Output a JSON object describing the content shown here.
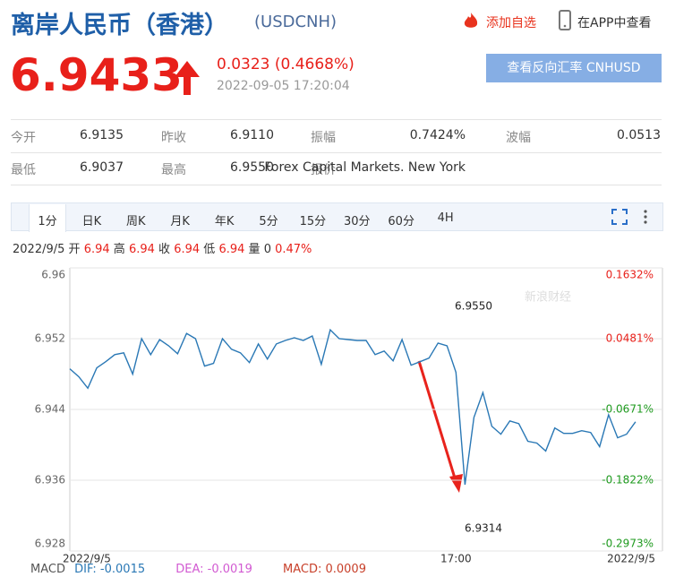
{
  "header": {
    "title": "离岸人民币（香港）",
    "code": "(USDCNH)",
    "add": "添加自选",
    "app": "在APP中查看"
  },
  "quote": {
    "price": "6.9433",
    "change": "0.0323 (0.4668%)",
    "time": "2022-09-05 17:20:04",
    "reverse": "查看反向汇率 CNHUSD"
  },
  "table": {
    "rows": [
      [
        "今开",
        "6.9135",
        "昨收",
        "6.9110",
        "振幅",
        "0.7424%",
        "波幅",
        "0.0513"
      ],
      [
        "最低",
        "6.9037",
        "最高",
        "6.9550",
        "报价",
        "Forex Capital Markets. New York"
      ]
    ]
  },
  "tabs": [
    "1分",
    "日K",
    "周K",
    "月K",
    "年K",
    "5分",
    "15分",
    "30分",
    "60分",
    "4H"
  ],
  "info": {
    "date": "2022/9/5",
    "items": [
      [
        "开",
        "6.94"
      ],
      [
        "高",
        "6.94"
      ],
      [
        "收",
        "6.94"
      ],
      [
        "低",
        "6.94"
      ],
      [
        "量",
        "0"
      ]
    ],
    "change": "0.47%"
  },
  "macd": {
    "name": "MACD",
    "dif": "DIF: -0.0015",
    "dea": "DEA: -0.0019",
    "macd": "MACD: 0.0009"
  },
  "chart_data": {
    "type": "line",
    "watermark": "新浪财经",
    "annotations": [
      "6.9550",
      "6.9314"
    ],
    "categories": [
      "2022/9/5",
      null,
      null,
      null,
      null,
      null,
      null,
      null,
      null,
      null,
      null,
      null,
      null,
      null,
      null,
      null,
      null,
      null,
      null,
      null,
      null,
      null,
      null,
      null,
      null,
      null,
      null,
      null,
      null,
      null,
      null,
      null,
      null,
      null,
      null,
      null,
      null,
      null,
      null,
      null,
      null,
      null,
      null,
      "17:00",
      null,
      null,
      null,
      null,
      null,
      null,
      null,
      null,
      null,
      null,
      null,
      null,
      null,
      null,
      null,
      null,
      null,
      null,
      null,
      null,
      null,
      "2022/9/5"
    ],
    "series": [
      {
        "name": "USDCNH",
        "color": "#2a78b5",
        "values": [
          6.9486,
          6.9477,
          6.9464,
          6.9487,
          6.9494,
          6.9502,
          6.9504,
          6.948,
          6.952,
          6.9502,
          6.9519,
          6.9512,
          6.9503,
          6.9526,
          6.952,
          6.9489,
          6.9492,
          6.952,
          6.9508,
          6.9504,
          6.9493,
          6.9514,
          6.9497,
          6.9514,
          6.9518,
          6.9521,
          6.9518,
          6.9523,
          6.9491,
          6.953,
          6.952,
          6.9519,
          6.9518,
          6.9518,
          6.9502,
          6.9506,
          6.9495,
          6.9519,
          6.949,
          6.9494,
          6.9498,
          6.9515,
          6.9512,
          6.9482,
          6.9355,
          6.9431,
          6.9459,
          6.9421,
          6.9412,
          6.9427,
          6.9424,
          6.9404,
          6.9402,
          6.9393,
          6.9419,
          6.9413,
          6.9413,
          6.9416,
          6.9414,
          6.9398,
          6.9434,
          6.9408,
          6.9412,
          6.9426,
          null,
          null
        ]
      }
    ],
    "ylim": [
      6.928,
      6.96
    ],
    "yticks": [
      6.96,
      6.952,
      6.944,
      6.936,
      6.928
    ],
    "y2lim": [
      -0.2973,
      0.1632
    ],
    "y2ticks": [
      {
        "value": 0.1632,
        "label": "0.1632%"
      },
      {
        "value": 0.0481,
        "label": "0.0481%"
      },
      {
        "value": -0.0671,
        "label": "-0.0671%"
      },
      {
        "value": -0.1822,
        "label": "-0.1822%"
      },
      {
        "value": -0.2973,
        "label": "-0.2973%"
      }
    ],
    "grid": true
  }
}
